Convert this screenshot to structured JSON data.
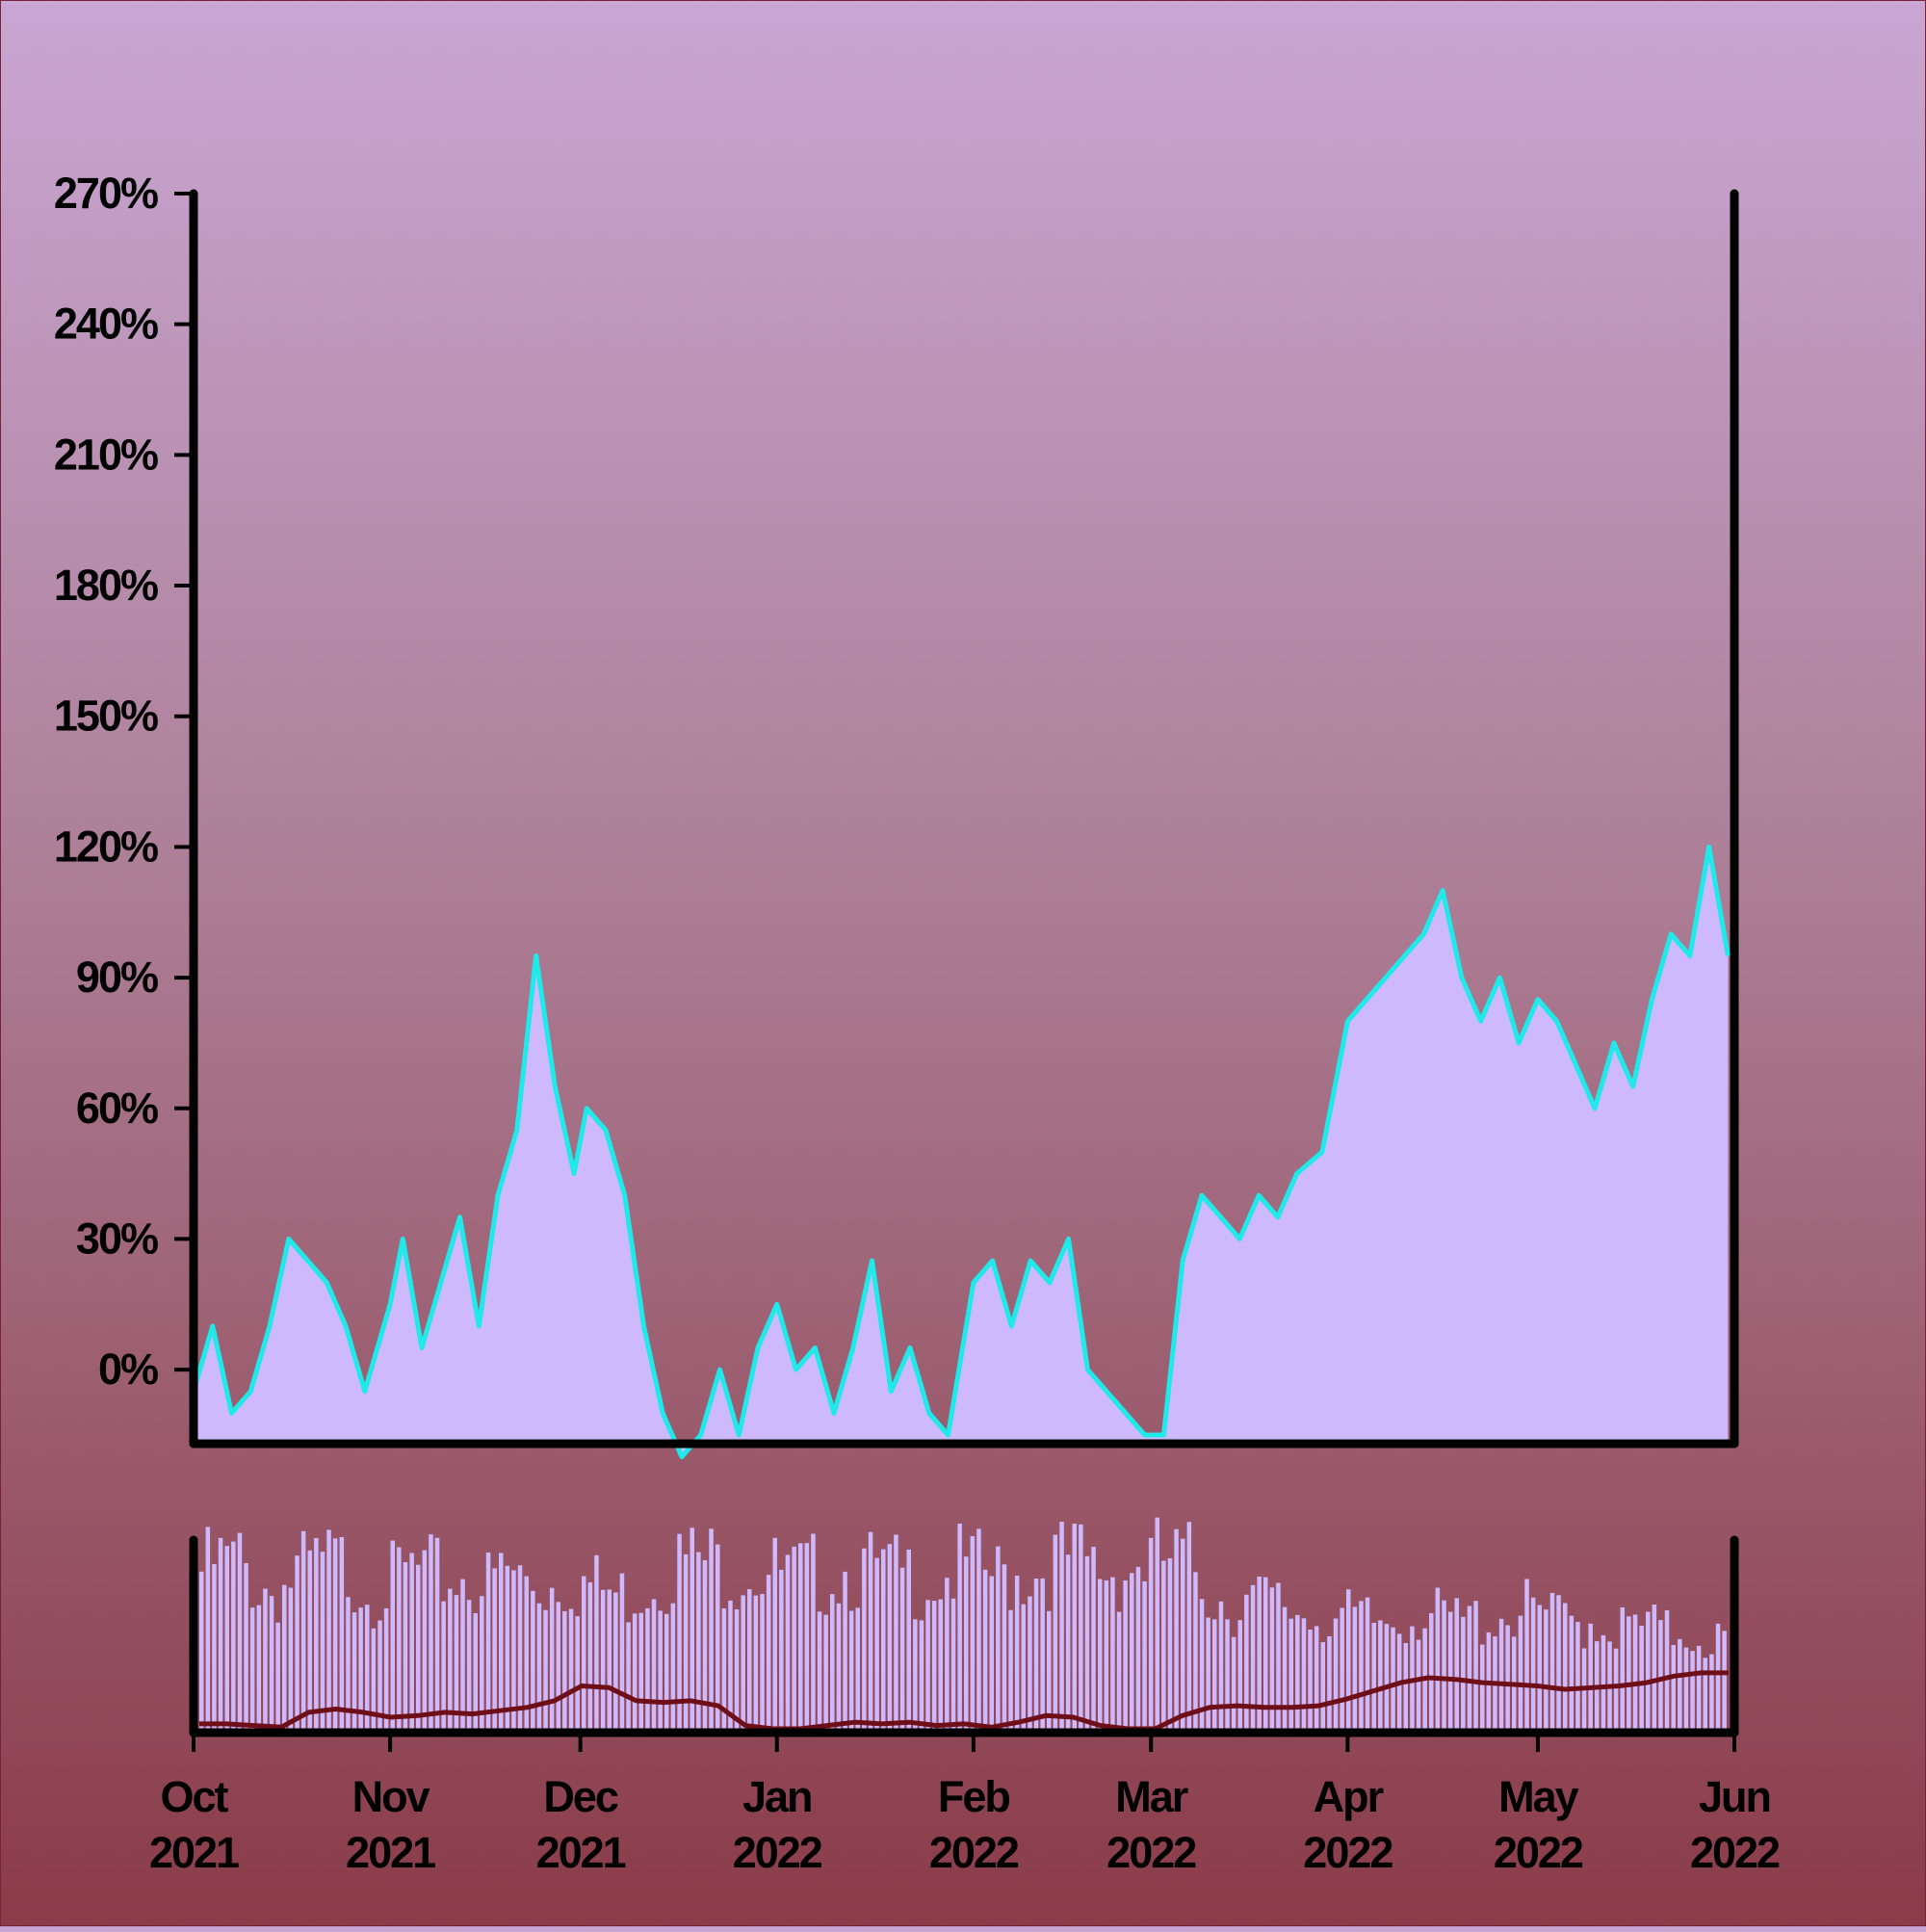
{
  "chart_data": [
    {
      "type": "area",
      "title": "",
      "xlabel": "",
      "ylabel": "",
      "ylim": [
        -17,
        270
      ],
      "yticks": [
        "0%",
        "30%",
        "60%",
        "90%",
        "120%",
        "150%",
        "180%",
        "210%",
        "240%",
        "270%"
      ],
      "ytick_values": [
        0,
        30,
        60,
        90,
        120,
        150,
        180,
        210,
        240,
        270
      ],
      "x_range": [
        "2021-10-01",
        "2022-06-01"
      ],
      "grid": false,
      "colors": {
        "fill": "#cfb9fd",
        "line": "#1fe9e9"
      },
      "series": [
        {
          "x": [
            "2021-10-01",
            "2021-10-04",
            "2021-10-07",
            "2021-10-10",
            "2021-10-13",
            "2021-10-16",
            "2021-10-19",
            "2021-10-22",
            "2021-10-25",
            "2021-10-28",
            "2021-11-01",
            "2021-11-03",
            "2021-11-06",
            "2021-11-09",
            "2021-11-12",
            "2021-11-15",
            "2021-11-18",
            "2021-11-21",
            "2021-11-24",
            "2021-11-27",
            "2021-11-30",
            "2021-12-02",
            "2021-12-05",
            "2021-12-08",
            "2021-12-11",
            "2021-12-14",
            "2021-12-17",
            "2021-12-20",
            "2021-12-23",
            "2021-12-26",
            "2021-12-29",
            "2022-01-01",
            "2022-01-04",
            "2022-01-07",
            "2022-01-10",
            "2022-01-13",
            "2022-01-16",
            "2022-01-19",
            "2022-01-22",
            "2022-01-25",
            "2022-01-28",
            "2022-02-01",
            "2022-02-04",
            "2022-02-07",
            "2022-02-10",
            "2022-02-13",
            "2022-02-16",
            "2022-02-19",
            "2022-02-22",
            "2022-02-25",
            "2022-02-28",
            "2022-03-03",
            "2022-03-06",
            "2022-03-09",
            "2022-03-12",
            "2022-03-15",
            "2022-03-18",
            "2022-03-21",
            "2022-03-24",
            "2022-03-28",
            "2022-04-01",
            "2022-04-04",
            "2022-04-07",
            "2022-04-10",
            "2022-04-13",
            "2022-04-16",
            "2022-04-19",
            "2022-04-22",
            "2022-04-25",
            "2022-04-28",
            "2022-05-01",
            "2022-05-04",
            "2022-05-07",
            "2022-05-10",
            "2022-05-13",
            "2022-05-16",
            "2022-05-19",
            "2022-05-22",
            "2022-05-25",
            "2022-05-28",
            "2022-05-31"
          ],
          "values": [
            -5,
            10,
            -10,
            -5,
            10,
            30,
            25,
            20,
            10,
            -5,
            15,
            30,
            5,
            20,
            35,
            10,
            40,
            55,
            95,
            65,
            45,
            60,
            55,
            40,
            10,
            -10,
            -20,
            -15,
            0,
            -15,
            5,
            15,
            0,
            5,
            -10,
            5,
            25,
            -5,
            5,
            -10,
            -15,
            20,
            25,
            10,
            25,
            20,
            30,
            0,
            -5,
            -10,
            -15,
            -15,
            25,
            40,
            35,
            30,
            40,
            35,
            45,
            50,
            80,
            85,
            90,
            95,
            100,
            110,
            90,
            80,
            90,
            75,
            85,
            80,
            70,
            60,
            75,
            65,
            85,
            100,
            95,
            120,
            95
          ]
        }
      ]
    },
    {
      "type": "bar",
      "title": "",
      "x_range": [
        "2021-10-01",
        "2022-06-01"
      ],
      "xticks": [
        {
          "month": "Oct",
          "year": "2021"
        },
        {
          "month": "Nov",
          "year": "2021"
        },
        {
          "month": "Dec",
          "year": "2021"
        },
        {
          "month": "Jan",
          "year": "2022"
        },
        {
          "month": "Feb",
          "year": "2022"
        },
        {
          "month": "Mar",
          "year": "2022"
        },
        {
          "month": "Apr",
          "year": "2022"
        },
        {
          "month": "May",
          "year": "2022"
        },
        {
          "month": "Jun",
          "year": "2022"
        }
      ],
      "xtick_dates": [
        "2021-10-01",
        "2021-11-01",
        "2021-12-01",
        "2022-01-01",
        "2022-02-01",
        "2022-03-01",
        "2022-04-01",
        "2022-05-01",
        "2022-06-01"
      ],
      "colors": {
        "bars": "#cfb9fd",
        "line": "#6e0f18"
      },
      "bar_levels": [
        0.88,
        0.92,
        0.93,
        0.8,
        0.78,
        0.86,
        0.9,
        0.92,
        0.87,
        0.79,
        0.82,
        0.88,
        0.85,
        0.84,
        0.86,
        0.8,
        0.88,
        0.83,
        0.8,
        0.85,
        0.82,
        0.78,
        0.74,
        0.8,
        0.86,
        0.93,
        0.94,
        0.92,
        0.9,
        0.92,
        0.87,
        0.84,
        0.86,
        0.88,
        0.9,
        0.88,
        0.86,
        0.85,
        0.84,
        0.86,
        0.9,
        0.87,
        0.84,
        0.88,
        0.89,
        0.94,
        0.93,
        0.9,
        0.88,
        0.92,
        0.94,
        0.93,
        0.92,
        0.78,
        0.7,
        0.72,
        0.7,
        0.68,
        0.66,
        0.64,
        0.62,
        0.6,
        0.6,
        0.64,
        0.66,
        0.62,
        0.6,
        0.62,
        0.64,
        0.66,
        0.66,
        0.62,
        0.6,
        0.62,
        0.58,
        0.56,
        0.58,
        0.54,
        0.56,
        0.52,
        0.5
      ],
      "trend_levels": [
        0.03,
        0.03,
        0.02,
        0.01,
        0.1,
        0.12,
        0.1,
        0.07,
        0.08,
        0.1,
        0.09,
        0.11,
        0.13,
        0.17,
        0.26,
        0.25,
        0.17,
        0.16,
        0.17,
        0.14,
        0.02,
        0.0,
        0.0,
        0.02,
        0.04,
        0.03,
        0.04,
        0.02,
        0.03,
        0.01,
        0.04,
        0.08,
        0.07,
        0.02,
        0.0,
        0.0,
        0.08,
        0.13,
        0.14,
        0.13,
        0.13,
        0.14,
        0.18,
        0.23,
        0.28,
        0.31,
        0.3,
        0.28,
        0.27,
        0.26,
        0.24,
        0.25,
        0.26,
        0.28,
        0.32,
        0.34,
        0.34
      ]
    }
  ]
}
